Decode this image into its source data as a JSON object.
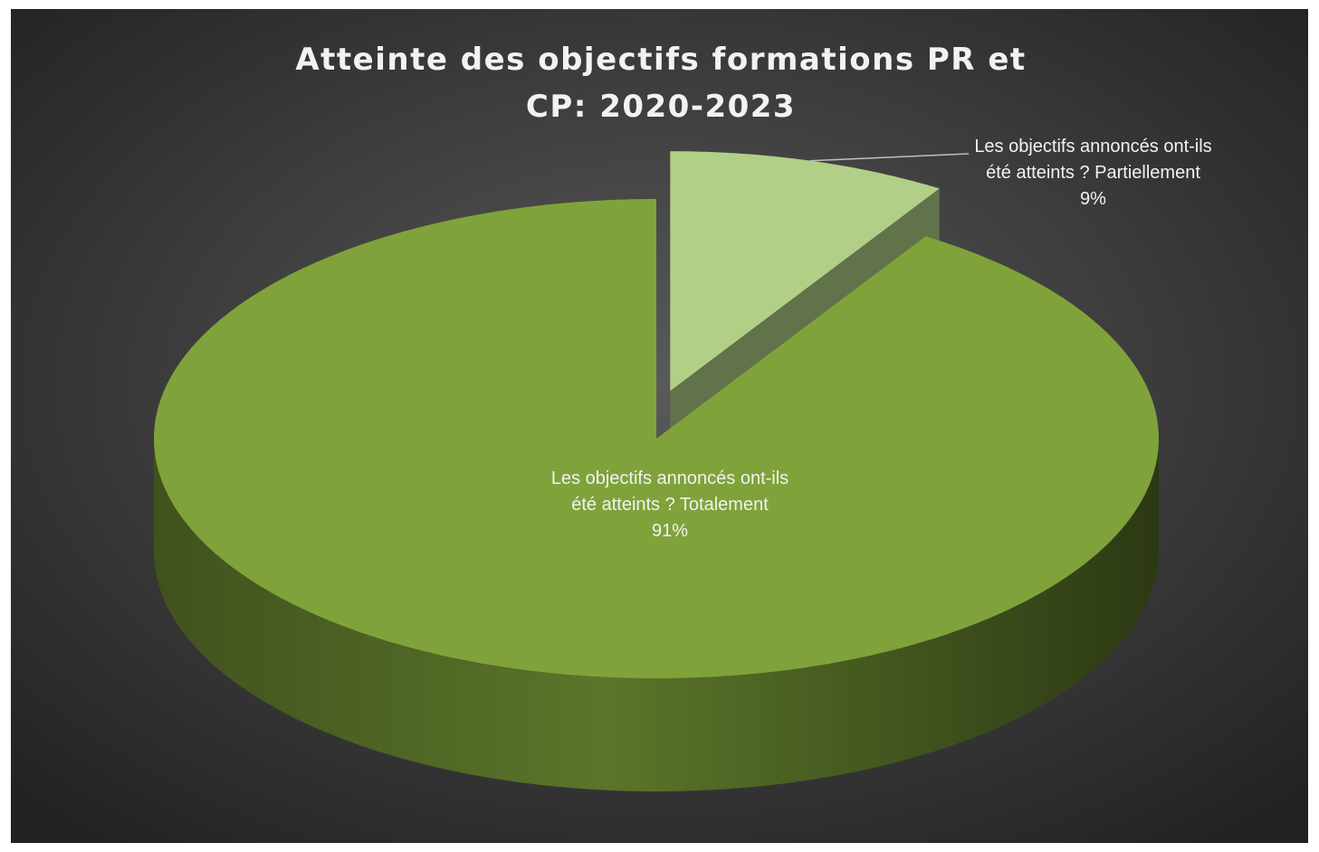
{
  "chart_data": {
    "type": "pie3d",
    "title": "Atteinte des objectifs formations PR et CP: 2020-2023",
    "categories": [
      "Les objectifs annoncés ont-ils été atteints ? Partiellement",
      "Les objectifs annoncés ont-ils été atteints ? Totalement"
    ],
    "values": [
      9,
      91
    ],
    "value_labels": [
      "9%",
      "91%"
    ],
    "colors": [
      "#b2cf88",
      "#7fa33a"
    ],
    "exploded": [
      true,
      false
    ]
  }
}
